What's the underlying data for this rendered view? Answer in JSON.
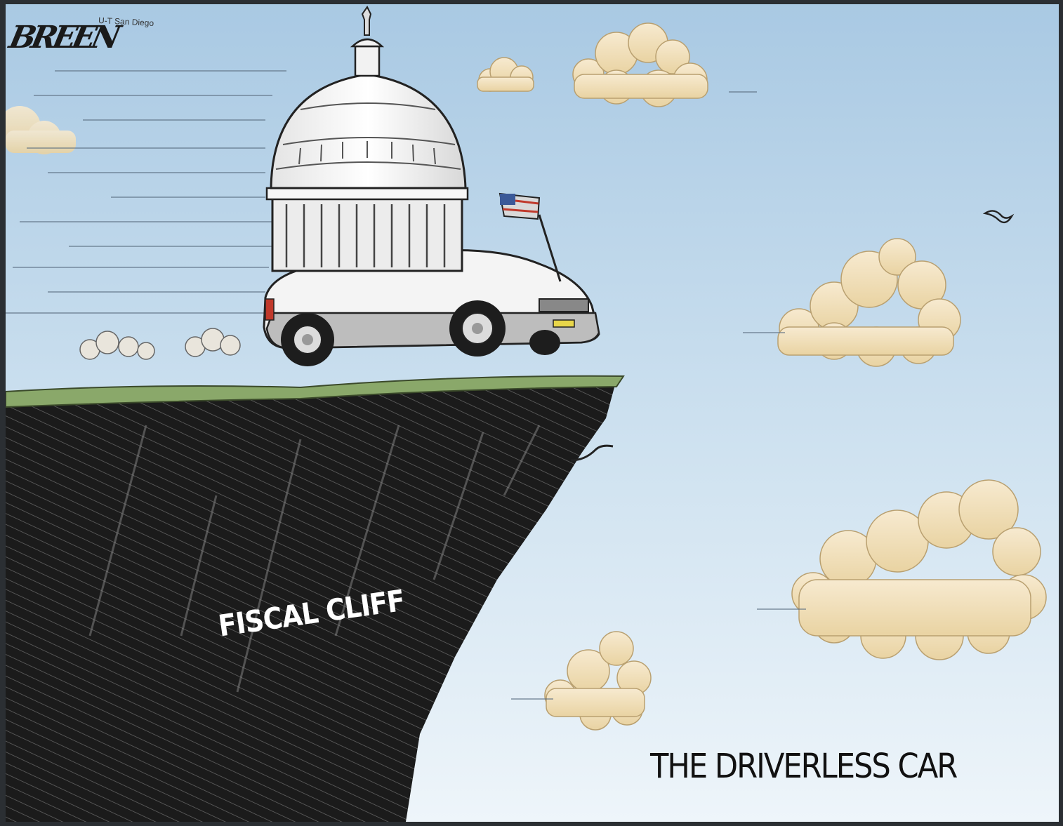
{
  "cartoon": {
    "signature": "BREEN",
    "publication_note": "U-T San Diego",
    "cliff_label": "FISCAL CLIFF",
    "caption": "THE DRIVERLESS CAR"
  },
  "colors": {
    "sky_top": "#a9c9e3",
    "sky_bottom": "#eef5fa",
    "cliff": "#1b1b1b",
    "grass": "#8aa86a",
    "cloud": "#f1e0b5",
    "car_body": "#f4f4f4"
  }
}
